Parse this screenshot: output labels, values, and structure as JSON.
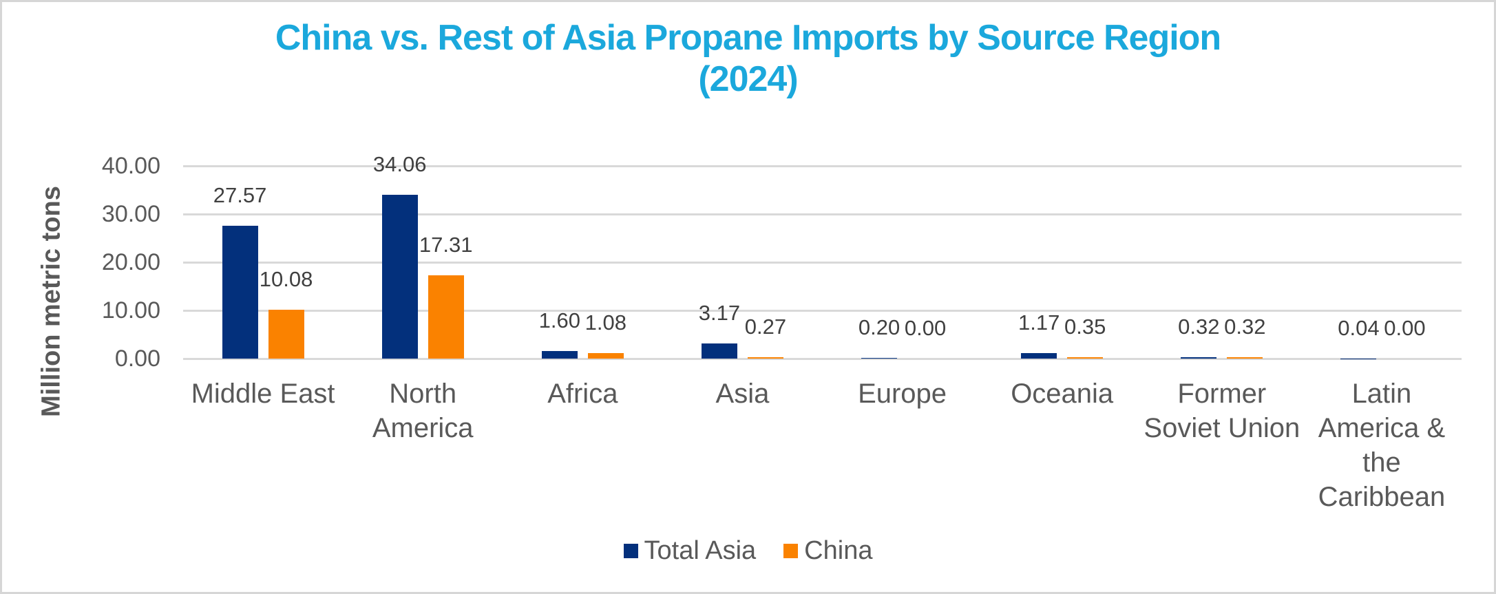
{
  "frame": {
    "border_color": "#d6d6d6",
    "background_color": "#ffffff"
  },
  "chart_data": {
    "type": "bar",
    "title_lines": [
      "China vs. Rest of Asia Propane Imports by Source Region",
      "(2024)"
    ],
    "title": "China vs. Rest of Asia Propane Imports by Source Region (2024)",
    "title_color": "#1ba8dc",
    "xlabel": "",
    "ylabel": "Million metric tons",
    "ylim": [
      0,
      40
    ],
    "y_ticks": [
      "40.00",
      "30.00",
      "20.00",
      "10.00",
      "0.00"
    ],
    "grid": true,
    "gridline_color": "#d9d9d9",
    "axis_text_color": "#595959",
    "value_label_color": "#404040",
    "legend_position": "bottom",
    "categories": [
      "Middle East",
      "North America",
      "Africa",
      "Asia",
      "Europe",
      "Oceania",
      "Former Soviet Union",
      "Latin America & the Caribbean"
    ],
    "category_label_lines": [
      [
        "Middle East"
      ],
      [
        "North",
        "America"
      ],
      [
        "Africa"
      ],
      [
        "Asia"
      ],
      [
        "Europe"
      ],
      [
        "Oceania"
      ],
      [
        "Former",
        "Soviet Union"
      ],
      [
        "Latin",
        "America &",
        "the",
        "Caribbean"
      ]
    ],
    "series": [
      {
        "name": "Total Asia",
        "color": "#03307c",
        "values": [
          27.57,
          34.06,
          1.6,
          3.17,
          0.2,
          1.17,
          0.32,
          0.04
        ]
      },
      {
        "name": "China",
        "color": "#fa8200",
        "values": [
          10.08,
          17.31,
          1.08,
          0.27,
          0.0,
          0.35,
          0.32,
          0.0
        ]
      }
    ]
  }
}
